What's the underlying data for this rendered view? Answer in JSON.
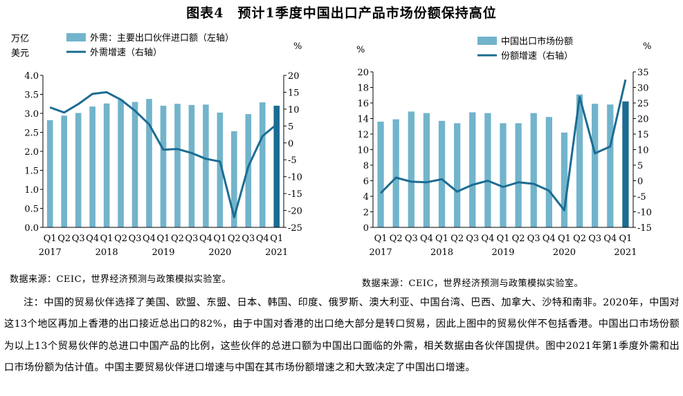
{
  "title": "图表4　预计1季度中国出口产品市场份额保持高位",
  "colors": {
    "bar": "#72B4CB",
    "bar_last": "#1B6C92",
    "line": "#1B6C92",
    "axis": "#000000"
  },
  "chart_data": [
    {
      "type": "bar+line",
      "left_unit_line1": "万亿",
      "left_unit_line2": "美元",
      "right_unit": "%",
      "legend_bar": "外需：主要出口伙伴进口额（左轴）",
      "legend_line": "外需增速（右轴）",
      "quarter_labels": [
        "Q1",
        "Q2",
        "Q3",
        "Q4",
        "Q1",
        "Q2",
        "Q3",
        "Q4",
        "Q1",
        "Q2",
        "Q3",
        "Q4",
        "Q1",
        "Q2",
        "Q3",
        "Q4",
        "Q1"
      ],
      "year_labels": [
        "2017",
        "2018",
        "2019",
        "2020",
        "2021"
      ],
      "ylim_left": [
        0,
        4
      ],
      "yticks_left": [
        "0.0",
        "0.5",
        "1.0",
        "1.5",
        "2.0",
        "2.5",
        "3.0",
        "3.5",
        "4.0"
      ],
      "ylim_right": [
        -25,
        20
      ],
      "yticks_right": [
        "-25",
        "-20",
        "-15",
        "-10",
        "-5",
        "0",
        "5",
        "10",
        "15",
        "20"
      ],
      "bar_values": [
        2.82,
        2.94,
        3.01,
        3.18,
        3.26,
        3.36,
        3.3,
        3.38,
        3.2,
        3.25,
        3.22,
        3.23,
        3.02,
        2.53,
        2.98,
        3.29,
        3.2
      ],
      "line_values": [
        10.5,
        9.0,
        11.5,
        14.5,
        15.0,
        12.8,
        9.5,
        5.5,
        -2.0,
        -1.8,
        -3.0,
        -4.7,
        -5.5,
        -22.0,
        -7.0,
        2.0,
        5.5
      ]
    },
    {
      "type": "bar+line",
      "left_unit": "%",
      "right_unit": "%",
      "legend_bar": "中国出口市场份额",
      "legend_line": "份额增速（右轴）",
      "quarter_labels": [
        "Q1",
        "Q2",
        "Q3",
        "Q4",
        "Q1",
        "Q2",
        "Q3",
        "Q4",
        "Q1",
        "Q2",
        "Q3",
        "Q4",
        "Q1",
        "Q2",
        "Q3",
        "Q4",
        "Q1"
      ],
      "year_labels": [
        "2017",
        "2018",
        "2019",
        "2020",
        "2021"
      ],
      "ylim_left": [
        0,
        20
      ],
      "yticks_left": [
        "0",
        "2",
        "4",
        "6",
        "8",
        "10",
        "12",
        "14",
        "16",
        "18",
        "20"
      ],
      "ylim_right": [
        -15,
        35
      ],
      "yticks_right": [
        "-15",
        "-10",
        "-5",
        "0",
        "5",
        "10",
        "15",
        "20",
        "25",
        "30",
        "35"
      ],
      "bar_values": [
        13.6,
        13.9,
        14.9,
        14.7,
        13.7,
        13.4,
        14.8,
        14.7,
        13.4,
        13.4,
        14.7,
        14.2,
        12.2,
        17.1,
        15.9,
        15.8,
        16.2
      ],
      "line_values": [
        -4.0,
        1.0,
        -0.3,
        -0.5,
        0.5,
        -3.5,
        -1.3,
        0.0,
        -2.0,
        -0.5,
        -1.0,
        -3.2,
        -9.5,
        27.0,
        8.8,
        11.0,
        32.5
      ]
    }
  ],
  "source_left": "数据来源：CEIC，世界经济预测与政策模拟实验室。",
  "source_right": "数据来源：CEIC，世界经济预测与政策模拟实验室。",
  "note": "注：中国的贸易伙伴选择了美国、欧盟、东盟、日本、韩国、印度、俄罗斯、澳大利亚、中国台湾、巴西、加拿大、沙特和南非。2020年，中国对这13个地区再加上香港的出口接近总出口的82%，由于中国对香港的出口绝大部分是转口贸易，因此上图中的贸易伙伴不包括香港。中国出口市场份额为以上13个贸易伙伴的总进口中国产品的比例，这些伙伴的总进口额为中国出口面临的外需，相关数据由各伙伴国提供。图中2021年第1季度外需和出口市场份额为估计值。中国主要贸易伙伴进口增速与中国在其市场份额增速之和大致决定了中国出口增速。"
}
